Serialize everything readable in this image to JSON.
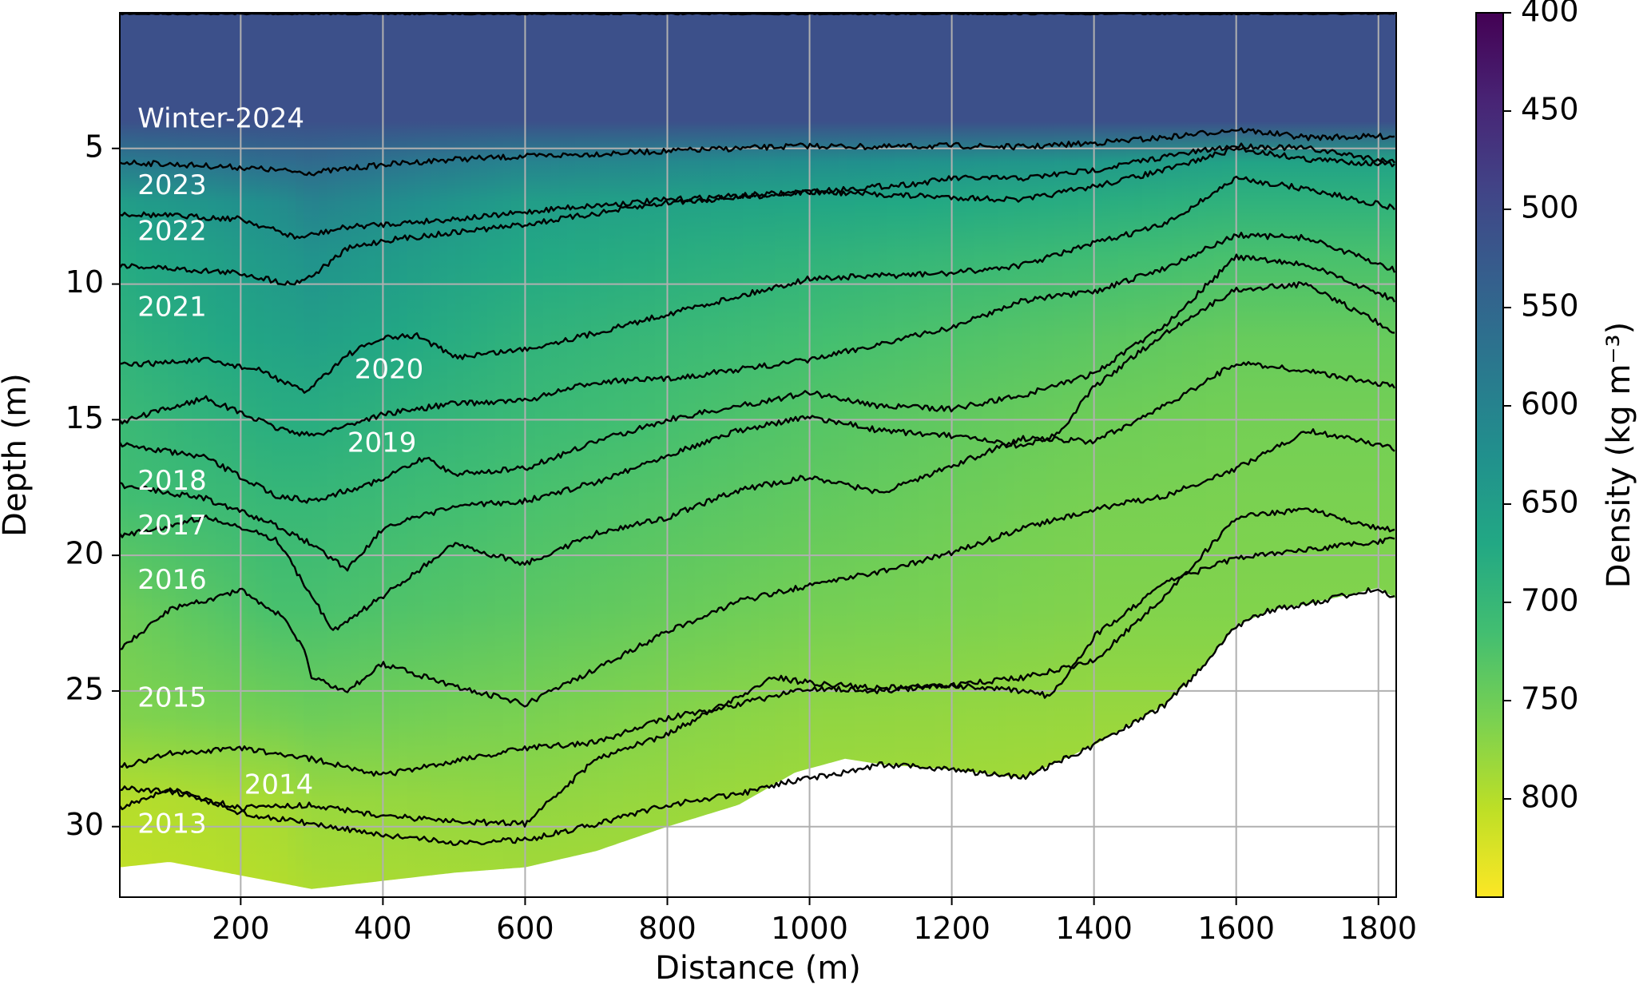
{
  "chart_data": {
    "type": "heatmap",
    "title": "",
    "xlabel": "Distance (m)",
    "ylabel": "Depth (m)",
    "xlim": [
      30,
      1825
    ],
    "ylim": [
      32.6,
      0
    ],
    "y_inverted": true,
    "grid": true,
    "x_ticks": [
      {
        "value": 200,
        "label": "200"
      },
      {
        "value": 400,
        "label": "400"
      },
      {
        "value": 600,
        "label": "600"
      },
      {
        "value": 800,
        "label": "800"
      },
      {
        "value": 1000,
        "label": "1000"
      },
      {
        "value": 1200,
        "label": "1200"
      },
      {
        "value": 1400,
        "label": "1400"
      },
      {
        "value": 1600,
        "label": "1600"
      },
      {
        "value": 1800,
        "label": "1800"
      }
    ],
    "y_ticks": [
      {
        "value": 5,
        "label": "5"
      },
      {
        "value": 10,
        "label": "10"
      },
      {
        "value": 15,
        "label": "15"
      },
      {
        "value": 20,
        "label": "20"
      },
      {
        "value": 25,
        "label": "25"
      },
      {
        "value": 30,
        "label": "30"
      }
    ],
    "colorbar": {
      "label": "Density (kg m⁻³)",
      "range": [
        400,
        850
      ],
      "ticks": [
        {
          "value": 400,
          "label": "400"
        },
        {
          "value": 450,
          "label": "450"
        },
        {
          "value": 500,
          "label": "500"
        },
        {
          "value": 550,
          "label": "550"
        },
        {
          "value": 600,
          "label": "600"
        },
        {
          "value": 650,
          "label": "650"
        },
        {
          "value": 700,
          "label": "700"
        },
        {
          "value": 750,
          "label": "750"
        },
        {
          "value": 800,
          "label": "800"
        }
      ],
      "colormap": [
        "#440154",
        "#482475",
        "#414487",
        "#355f8d",
        "#2a788e",
        "#21908d",
        "#22a884",
        "#42be71",
        "#7ad151",
        "#bddf26",
        "#fde725"
      ]
    },
    "surface": {
      "x": [
        30,
        200,
        300,
        400,
        600,
        800,
        1000,
        1200,
        1400,
        1600,
        1825
      ],
      "depth": [
        0.0,
        0.0,
        0.0,
        0.0,
        0.0,
        0.0,
        0.0,
        0.0,
        0.0,
        0.0,
        0.0
      ]
    },
    "bottom": {
      "x": [
        30,
        100,
        200,
        300,
        400,
        500,
        600,
        700,
        800,
        900,
        980,
        1050,
        1100,
        1200,
        1300,
        1400,
        1500,
        1550,
        1600,
        1650,
        1700,
        1750,
        1800,
        1825
      ],
      "depth": [
        31.5,
        31.3,
        31.8,
        32.3,
        32.0,
        31.7,
        31.5,
        30.9,
        30.0,
        29.2,
        28.0,
        27.5,
        27.7,
        27.9,
        28.2,
        27.0,
        25.5,
        24.2,
        22.6,
        22.0,
        21.8,
        21.5,
        21.2,
        21.6
      ]
    },
    "horizons": [
      {
        "year": "Winter-2024",
        "label_x": 55,
        "label_depth": 3.95,
        "x": [
          30,
          200,
          300,
          400,
          500,
          600,
          700,
          800,
          900,
          1000,
          1100,
          1200,
          1300,
          1400,
          1500,
          1600,
          1700,
          1825
        ],
        "depth": [
          5.5,
          5.7,
          5.9,
          5.6,
          5.4,
          5.3,
          5.2,
          5.1,
          5.0,
          4.9,
          4.95,
          4.9,
          4.95,
          4.8,
          4.6,
          4.3,
          4.6,
          4.55
        ]
      },
      {
        "year": "2023",
        "label_x": 55,
        "label_depth": 6.4,
        "x": [
          30,
          200,
          280,
          350,
          450,
          550,
          650,
          800,
          1000,
          1150,
          1200,
          1300,
          1400,
          1500,
          1600,
          1700,
          1825
        ],
        "depth": [
          7.4,
          7.6,
          8.3,
          7.9,
          7.7,
          7.5,
          7.2,
          6.9,
          6.6,
          6.3,
          6.1,
          6.1,
          5.8,
          5.3,
          4.9,
          5.0,
          5.5
        ]
      },
      {
        "year": "2022",
        "label_x": 55,
        "label_depth": 8.1,
        "x": [
          30,
          200,
          270,
          300,
          350,
          400,
          500,
          600,
          700,
          800,
          1000,
          1200,
          1300,
          1400,
          1500,
          1600,
          1700,
          1825
        ],
        "depth": [
          9.3,
          9.6,
          10.0,
          9.7,
          8.7,
          8.4,
          8.1,
          7.8,
          7.4,
          7.0,
          6.6,
          6.8,
          6.9,
          6.4,
          5.8,
          5.0,
          5.4,
          5.6
        ]
      },
      {
        "year": "2021",
        "label_x": 55,
        "label_depth": 10.9,
        "x": [
          30,
          150,
          230,
          290,
          350,
          400,
          450,
          500,
          600,
          700,
          800,
          1000,
          1200,
          1300,
          1400,
          1500,
          1600,
          1700,
          1825
        ],
        "depth": [
          13.0,
          12.8,
          13.2,
          14.0,
          12.6,
          12.0,
          11.9,
          12.7,
          12.4,
          11.8,
          11.1,
          9.8,
          9.6,
          9.3,
          8.5,
          7.8,
          6.1,
          6.5,
          7.2
        ]
      },
      {
        "year": "2020",
        "label_x": 360,
        "label_depth": 13.2,
        "x": [
          30,
          150,
          250,
          300,
          400,
          500,
          600,
          700,
          800,
          1000,
          1200,
          1300,
          1400,
          1500,
          1600,
          1700,
          1825
        ],
        "depth": [
          15.1,
          14.2,
          15.3,
          15.6,
          14.8,
          14.4,
          14.3,
          13.6,
          13.5,
          12.8,
          11.6,
          10.6,
          10.3,
          9.4,
          8.2,
          8.3,
          9.5
        ]
      },
      {
        "year": "2019",
        "label_x": 350,
        "label_depth": 15.9,
        "x": [
          30,
          150,
          250,
          300,
          400,
          460,
          500,
          600,
          700,
          800,
          1000,
          1100,
          1200,
          1300,
          1400,
          1500,
          1600,
          1700,
          1825
        ],
        "depth": [
          15.9,
          16.4,
          17.8,
          18.0,
          17.2,
          16.4,
          17.0,
          16.8,
          15.8,
          15.0,
          14.0,
          14.5,
          14.6,
          14.1,
          13.3,
          11.5,
          9.0,
          9.3,
          10.6
        ]
      },
      {
        "year": "2018",
        "label_x": 55,
        "label_depth": 17.3,
        "x": [
          30,
          150,
          250,
          300,
          350,
          400,
          500,
          600,
          700,
          800,
          900,
          1000,
          1100,
          1200,
          1300,
          1350,
          1400,
          1500,
          1600,
          1700,
          1825
        ],
        "depth": [
          17.4,
          17.9,
          18.9,
          19.6,
          20.5,
          19.0,
          18.2,
          18.0,
          17.3,
          16.3,
          15.4,
          14.9,
          15.4,
          15.6,
          16.0,
          15.5,
          13.8,
          11.8,
          10.2,
          10.0,
          11.8
        ]
      },
      {
        "year": "2017",
        "label_x": 55,
        "label_depth": 18.95,
        "x": [
          30,
          150,
          250,
          300,
          330,
          400,
          500,
          600,
          700,
          800,
          900,
          1000,
          1100,
          1200,
          1300,
          1400,
          1500,
          1600,
          1700,
          1825
        ],
        "depth": [
          19.3,
          18.6,
          19.4,
          21.5,
          22.8,
          21.5,
          19.6,
          20.3,
          19.2,
          18.6,
          17.6,
          17.1,
          17.7,
          16.7,
          15.7,
          15.8,
          14.5,
          12.9,
          13.2,
          13.8
        ]
      },
      {
        "year": "2016",
        "label_x": 55,
        "label_depth": 20.95,
        "x": [
          30,
          100,
          200,
          260,
          290,
          300,
          350,
          400,
          500,
          600,
          700,
          800,
          900,
          1000,
          1100,
          1200,
          1300,
          1400,
          1500,
          1600,
          1700,
          1800,
          1825
        ],
        "depth": [
          23.5,
          22.0,
          21.3,
          22.3,
          23.5,
          24.5,
          25.0,
          24.0,
          24.8,
          25.5,
          24.2,
          22.8,
          21.7,
          21.1,
          20.6,
          19.9,
          19.0,
          18.3,
          17.8,
          16.8,
          15.4,
          15.9,
          16.1
        ]
      },
      {
        "year": "2015",
        "label_x": 55,
        "label_depth": 25.3,
        "x": [
          30,
          100,
          200,
          300,
          400,
          500,
          600,
          700,
          800,
          900,
          1000,
          1100,
          1200,
          1300,
          1400,
          1500,
          1600,
          1700,
          1800,
          1825
        ],
        "depth": [
          27.8,
          27.3,
          27.1,
          27.5,
          28.1,
          27.6,
          27.1,
          26.9,
          26.0,
          25.5,
          24.9,
          25.0,
          24.8,
          24.5,
          23.9,
          21.5,
          18.6,
          18.3,
          19.0,
          19.1
        ]
      },
      {
        "year": "2014",
        "label_x": 205,
        "label_depth": 28.5,
        "x": [
          30,
          100,
          200,
          300,
          400,
          500,
          600,
          700,
          800,
          900,
          950,
          1000,
          1100,
          1200,
          1300,
          1340,
          1400,
          1450,
          1500,
          1600,
          1700,
          1800,
          1825
        ],
        "depth": [
          28.6,
          28.7,
          29.3,
          29.2,
          29.6,
          29.8,
          29.9,
          27.5,
          26.6,
          25.2,
          24.5,
          24.7,
          24.9,
          24.8,
          25.0,
          25.2,
          23.0,
          22.0,
          21.0,
          20.1,
          19.8,
          19.5,
          19.3
        ]
      },
      {
        "year": "2013",
        "label_x": 55,
        "label_depth": 29.95,
        "x": [
          30,
          100,
          200,
          300,
          400,
          500,
          600,
          700,
          800,
          900,
          980,
          1050,
          1100,
          1200,
          1300,
          1400,
          1500,
          1550,
          1600,
          1650,
          1700,
          1750,
          1800,
          1825
        ],
        "depth": [
          29.3,
          28.6,
          29.5,
          29.9,
          30.3,
          30.6,
          30.5,
          29.9,
          29.2,
          28.8,
          28.3,
          28.0,
          27.7,
          27.9,
          28.2,
          27.0,
          25.5,
          24.2,
          22.6,
          22.0,
          21.8,
          21.5,
          21.2,
          21.6
        ]
      }
    ],
    "density_field": {
      "x": [
        30,
        250,
        300,
        600,
        1000,
        1400,
        1600,
        1825
      ],
      "depth_samples": [
        0,
        4,
        5.5,
        7,
        9,
        12,
        15,
        18,
        22,
        26,
        29,
        33
      ],
      "density": [
        [
          510,
          510,
          510,
          510,
          510,
          510,
          510,
          510
        ],
        [
          510,
          510,
          510,
          510,
          510,
          510,
          510,
          510
        ],
        [
          585,
          560,
          555,
          600,
          620,
          640,
          660,
          660
        ],
        [
          650,
          620,
          600,
          650,
          665,
          680,
          690,
          690
        ],
        [
          675,
          640,
          630,
          670,
          690,
          710,
          720,
          720
        ],
        [
          690,
          660,
          655,
          690,
          715,
          735,
          745,
          745
        ],
        [
          705,
          680,
          680,
          705,
          730,
          750,
          755,
          755
        ],
        [
          715,
          700,
          700,
          720,
          740,
          758,
          760,
          760
        ],
        [
          750,
          720,
          720,
          735,
          755,
          765,
          765,
          765
        ],
        [
          765,
          755,
          750,
          760,
          775,
          780,
          780,
          780
        ],
        [
          800,
          790,
          780,
          775,
          785,
          790,
          790,
          790
        ],
        [
          810,
          800,
          795,
          790,
          790,
          790,
          790,
          790
        ]
      ]
    }
  }
}
